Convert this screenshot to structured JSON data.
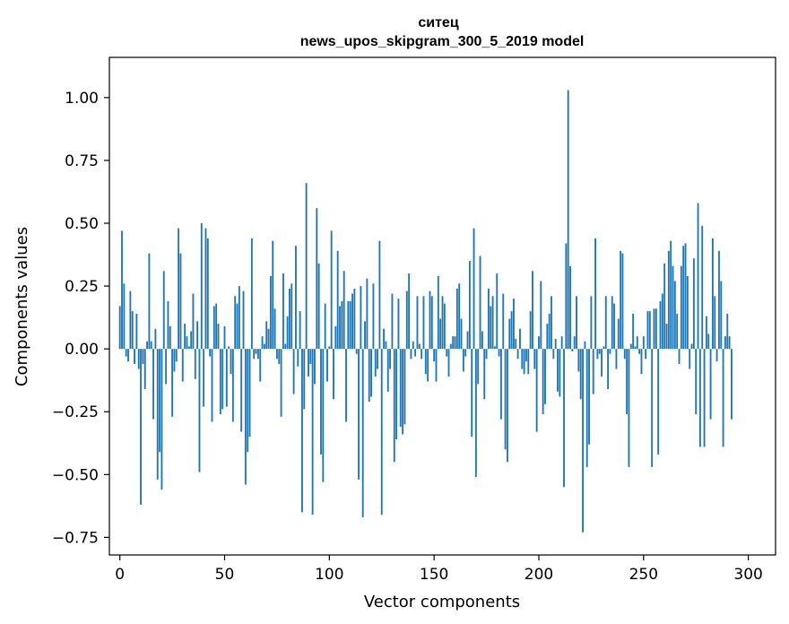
{
  "chart_data": {
    "type": "bar",
    "title": "ситец",
    "subtitle": "news_upos_skipgram_300_5_2019 model",
    "xlabel": "Vector components",
    "ylabel": "Components values",
    "xlim": [
      -5,
      313
    ],
    "ylim": [
      -0.82,
      1.16
    ],
    "xticks": [
      0,
      50,
      100,
      150,
      200,
      250,
      300
    ],
    "yticks": [
      -0.75,
      -0.5,
      -0.25,
      0.0,
      0.25,
      0.5,
      0.75,
      1.0
    ],
    "xtick_labels": [
      "0",
      "50",
      "100",
      "150",
      "200",
      "250",
      "300"
    ],
    "ytick_labels": [
      "−0.75",
      "−0.50",
      "−0.25",
      "0.00",
      "0.25",
      "0.50",
      "0.75",
      "1.00"
    ],
    "grid": false,
    "bar_color": "#1f77b4",
    "values": [
      0.17,
      0.47,
      0.26,
      -0.03,
      -0.05,
      0.23,
      0.15,
      -0.06,
      0.14,
      -0.08,
      -0.62,
      -0.06,
      -0.16,
      0.03,
      0.38,
      0.03,
      -0.28,
      0.08,
      -0.52,
      -0.41,
      -0.56,
      0.31,
      -0.14,
      0.19,
      0.09,
      -0.27,
      -0.09,
      -0.05,
      0.48,
      0.38,
      -0.13,
      0.1,
      0.05,
      0.01,
      0.07,
      0.22,
      -0.12,
      0.11,
      -0.49,
      0.5,
      -0.23,
      0.48,
      0.44,
      -0.03,
      -0.29,
      0.17,
      0.18,
      0.1,
      -0.26,
      -0.24,
      0.09,
      -0.23,
      0.01,
      -0.1,
      -0.29,
      0.21,
      0.18,
      0.25,
      -0.33,
      0.23,
      -0.54,
      -0.41,
      -0.35,
      0.44,
      -0.04,
      -0.02,
      -0.04,
      -0.13,
      0.05,
      0.02,
      0.11,
      0.08,
      0.29,
      0.43,
      0.16,
      -0.04,
      -0.06,
      -0.27,
      0.3,
      0.02,
      0.13,
      0.24,
      0.26,
      -0.18,
      0.41,
      -0.07,
      0.15,
      -0.65,
      -0.24,
      0.66,
      -0.11,
      -0.06,
      -0.66,
      -0.14,
      0.56,
      0.34,
      -0.42,
      -0.53,
      0.18,
      -0.13,
      0.01,
      0.47,
      -0.2,
      0.09,
      0.39,
      0.17,
      0.19,
      0.31,
      -0.29,
      0.19,
      0.19,
      0.22,
      0.24,
      -0.02,
      -0.52,
      0.25,
      -0.67,
      0.11,
      0.28,
      -0.21,
      -0.19,
      0.26,
      -0.11,
      -0.08,
      0.43,
      -0.66,
      0.08,
      0.03,
      -0.17,
      -0.08,
      0.22,
      -0.45,
      -0.36,
      0.2,
      -0.31,
      -0.34,
      -0.3,
      0.23,
      0.3,
      -0.04,
      0.03,
      -0.03,
      0.21,
      0.02,
      -0.04,
      0.21,
      -0.1,
      -0.13,
      0.23,
      0.21,
      -0.05,
      -0.13,
      0.29,
      0.12,
      0.21,
      0.18,
      -0.03,
      -0.11,
      0.02,
      0.05,
      0.05,
      0.24,
      0.26,
      0.12,
      -0.09,
      -0.03,
      0.07,
      0.35,
      -0.35,
      0.48,
      -0.51,
      -0.14,
      0.37,
      0.07,
      -0.2,
      -0.04,
      0.24,
      0.17,
      0.21,
      0.01,
      0.3,
      -0.03,
      -0.28,
      0.22,
      -0.4,
      -0.45,
      0.12,
      0.15,
      0.2,
      0.04,
      -0.04,
      0.08,
      -0.08,
      -0.1,
      -0.05,
      -0.1,
      0.15,
      0.31,
      -0.08,
      -0.33,
      0.05,
      0.27,
      -0.26,
      -0.22,
      0.1,
      0.14,
      0.21,
      -0.04,
      0.04,
      -0.17,
      -0.19,
      0.05,
      -0.55,
      0.42,
      1.03,
      0.33,
      -0.01,
      0.05,
      0.21,
      -0.09,
      -0.2,
      -0.73,
      0.03,
      -0.47,
      -0.38,
      0.21,
      -0.18,
      0.44,
      -0.04,
      -0.02,
      -0.11,
      0.01,
      0.21,
      -0.16,
      -0.02,
      0.21,
      0.18,
      -0.08,
      0.12,
      0.39,
      0.38,
      -0.04,
      -0.26,
      -0.47,
      0.02,
      0.14,
      0.01,
      0.05,
      -0.02,
      -0.1,
      0.05,
      -0.04,
      0.15,
      0.15,
      -0.47,
      0.16,
      0.16,
      -0.42,
      0.19,
      0.22,
      0.34,
      0.1,
      0.39,
      0.43,
      0.33,
      0.27,
      0.14,
      -0.06,
      0.33,
      0.41,
      0.42,
      0.29,
      -0.08,
      0.02,
      0.36,
      -0.26,
      0.58,
      -0.39,
      0.49,
      -0.39,
      0.13,
      0.06,
      -0.28,
      0.44,
      0.21,
      -0.05,
      0.39,
      0.27,
      -0.39,
      0.05,
      0.14,
      0.05,
      -0.28
    ]
  }
}
